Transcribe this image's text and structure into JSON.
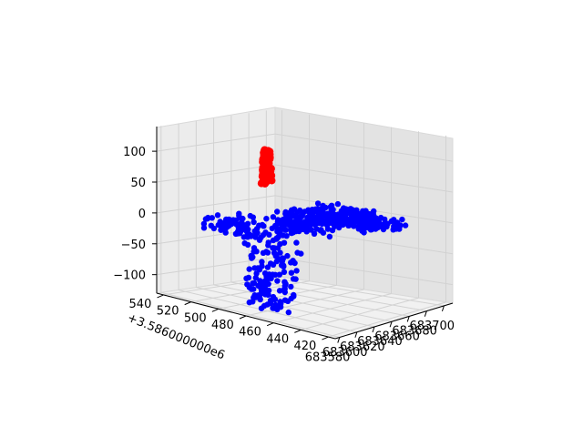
{
  "chart_data": {
    "type": "scatter",
    "projection": "3d",
    "grid": true,
    "title": "",
    "xlabel": "",
    "ylabel": "",
    "zlabel": "",
    "x_ticks": [
      "683580",
      "683600",
      "683620",
      "683640",
      "683660",
      "683680",
      "683700"
    ],
    "y_ticks": [
      "420",
      "440",
      "460",
      "480",
      "500",
      "520",
      "540"
    ],
    "z_ticks": [
      "−100",
      "−50",
      "0",
      "50",
      "100"
    ],
    "y_offset_label": "+3.586000000e6",
    "x_range": [
      683575,
      683710
    ],
    "y_range": [
      415,
      545
    ],
    "z_range": [
      -130,
      140
    ],
    "series": [
      {
        "color": "#0000ff",
        "description_points": [
          [
            683583,
            505,
            0
          ],
          [
            683588,
            500,
            3
          ],
          [
            683593,
            496,
            -8
          ],
          [
            683598,
            492,
            10
          ],
          [
            683603,
            488,
            -22
          ],
          [
            683606,
            486,
            -70
          ],
          [
            683608,
            485,
            -110
          ],
          [
            683610,
            484,
            -125
          ],
          [
            683612,
            483,
            -100
          ],
          [
            683614,
            482,
            -60
          ],
          [
            683617,
            480,
            -20
          ],
          [
            683620,
            478,
            6
          ],
          [
            683624,
            476,
            22
          ],
          [
            683628,
            474,
            -8
          ],
          [
            683632,
            472,
            18
          ],
          [
            683636,
            470,
            -2
          ],
          [
            683640,
            468,
            20
          ],
          [
            683644,
            466,
            6
          ],
          [
            683648,
            464,
            28
          ],
          [
            683652,
            462,
            8
          ],
          [
            683656,
            460,
            22
          ],
          [
            683660,
            458,
            -4
          ],
          [
            683664,
            456,
            16
          ],
          [
            683668,
            454,
            4
          ],
          [
            683672,
            452,
            12
          ],
          [
            683676,
            450,
            -4
          ],
          [
            683680,
            448,
            4
          ],
          [
            683684,
            446,
            -2
          ]
        ]
      },
      {
        "color": "#ff0000",
        "description_points": [
          [
            683606,
            487,
            72
          ],
          [
            683607,
            487,
            90
          ],
          [
            683608,
            487,
            105
          ],
          [
            683609,
            487,
            118
          ],
          [
            683610,
            487,
            122
          ],
          [
            683611,
            487,
            112
          ],
          [
            683612,
            487,
            95
          ],
          [
            683613,
            487,
            78
          ]
        ]
      }
    ]
  }
}
